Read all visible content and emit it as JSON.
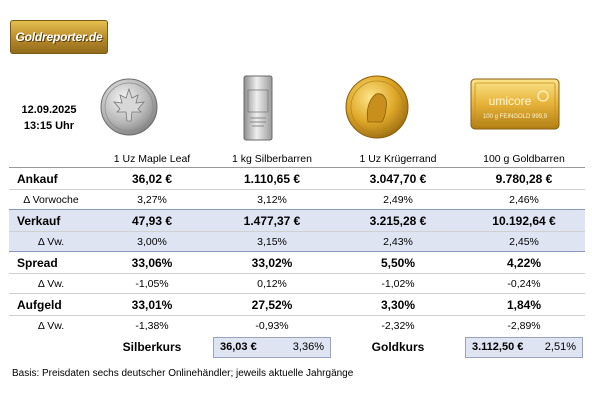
{
  "logo": {
    "text": "Goldreporter.de"
  },
  "date": "12.09.2025",
  "time": "13:15 Uhr",
  "products": [
    {
      "name": "1 Uz Maple Leaf",
      "icon": "maple-leaf-coin-icon"
    },
    {
      "name": "1 kg Silberbarren",
      "icon": "silver-bar-icon"
    },
    {
      "name": "1 Uz Krügerrand",
      "icon": "krugerrand-coin-icon"
    },
    {
      "name": "100 g Goldbarren",
      "icon": "gold-bar-icon",
      "bar_text": [
        "umicore",
        "100 g FEINGOLD 999,9"
      ]
    }
  ],
  "rows": [
    {
      "label": "Ankauf",
      "type": "main",
      "values": [
        "36,02 €",
        "1.110,65 €",
        "3.047,70 €",
        "9.780,28 €"
      ]
    },
    {
      "label": "Δ Vorwoche",
      "type": "sub",
      "values": [
        "3,27%",
        "3,12%",
        "2,49%",
        "2,46%"
      ]
    },
    {
      "label": "Verkauf",
      "type": "main",
      "values": [
        "47,93 €",
        "1.477,37 €",
        "3.215,28 €",
        "10.192,64 €"
      ]
    },
    {
      "label": "Δ Vw.",
      "type": "sub",
      "values": [
        "3,00%",
        "3,15%",
        "2,43%",
        "2,45%"
      ]
    },
    {
      "label": "Spread",
      "type": "main",
      "values": [
        "33,06%",
        "33,02%",
        "5,50%",
        "4,22%"
      ]
    },
    {
      "label": "Δ Vw.",
      "type": "sub",
      "values": [
        "-1,05%",
        "0,12%",
        "-1,02%",
        "-0,24%"
      ]
    },
    {
      "label": "Aufgeld",
      "type": "main",
      "values": [
        "33,01%",
        "27,52%",
        "3,30%",
        "1,84%"
      ]
    },
    {
      "label": "Δ Vw.",
      "type": "sub",
      "values": [
        "-1,38%",
        "-0,93%",
        "-2,32%",
        "-2,89%"
      ]
    }
  ],
  "silberkurs": {
    "label": "Silberkurs",
    "price": "36,03 €",
    "change": "3,36%"
  },
  "goldkurs": {
    "label": "Goldkurs",
    "price": "3.112,50 €",
    "change": "2,51%"
  },
  "footer": "Basis: Preisdaten sechs deutscher Onlinehändler; jeweils aktuelle Jahrgänge",
  "colors": {
    "highlight": "#dfe4f2",
    "gold": "#c9971f",
    "silver": "#c8c8c8"
  }
}
